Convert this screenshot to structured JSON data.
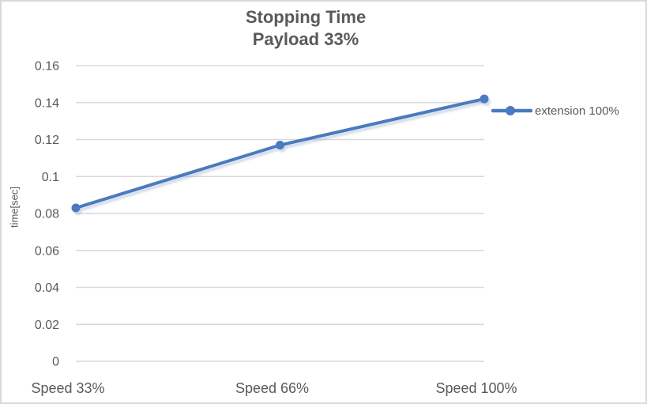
{
  "window": {
    "background": "#ffffff",
    "border_color": "#d9d9d9"
  },
  "chart_data": {
    "type": "line",
    "title": "Stopping Time",
    "subtitle": "Payload 33%",
    "categories": [
      "Speed 33%",
      "Speed 66%",
      "Speed 100%"
    ],
    "series": [
      {
        "name": "extension 100%",
        "values": [
          0.083,
          0.117,
          0.142
        ],
        "color": "#4a7abf",
        "marker": "circle"
      }
    ],
    "xlabel": "",
    "ylabel": "time[sec]",
    "ylim": [
      0,
      0.16
    ],
    "ytick_step": 0.02,
    "ytick_labels": [
      "0",
      "0.02",
      "0.04",
      "0.06",
      "0.08",
      "0.1",
      "0.12",
      "0.14",
      "0.16"
    ],
    "grid": true,
    "legend_position": "right",
    "category_axis_mode": "on-tick-marks"
  },
  "colors": {
    "gridline": "#d9d9d9",
    "axis_text": "#595959",
    "title_text": "#595959",
    "legend_text": "#595959",
    "shadow": "#8fa7c8"
  }
}
